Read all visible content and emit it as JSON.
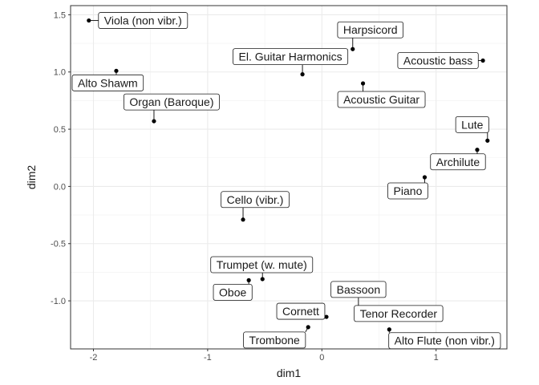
{
  "chart_data": {
    "type": "scatter",
    "xlabel": "dim1",
    "ylabel": "dim2",
    "xlim": [
      -2.2,
      1.62
    ],
    "ylim": [
      -1.42,
      1.58
    ],
    "x_ticks": [
      -2,
      -1,
      0,
      1
    ],
    "x_tick_labels": [
      "-2",
      "-1",
      "0",
      "1"
    ],
    "y_ticks": [
      -1.0,
      -0.5,
      0.0,
      0.5,
      1.0,
      1.5
    ],
    "y_tick_labels": [
      "-1.0",
      "-0.5",
      "0.0",
      "0.5",
      "1.0",
      "1.5"
    ],
    "grid": true,
    "points": [
      {
        "label": "Viola (non vibr.)",
        "x": -2.04,
        "y": 1.45
      },
      {
        "label": "Alto Shawm",
        "x": -1.8,
        "y": 1.01
      },
      {
        "label": "Organ (Baroque)",
        "x": -1.47,
        "y": 0.57
      },
      {
        "label": "Harpsicord",
        "x": 0.27,
        "y": 1.2
      },
      {
        "label": "El. Guitar Harmonics",
        "x": -0.17,
        "y": 0.98
      },
      {
        "label": "Acoustic bass",
        "x": 1.41,
        "y": 1.1
      },
      {
        "label": "Acoustic Guitar",
        "x": 0.36,
        "y": 0.9
      },
      {
        "label": "Lute",
        "x": 1.45,
        "y": 0.4
      },
      {
        "label": "Archilute",
        "x": 1.36,
        "y": 0.32
      },
      {
        "label": "Piano",
        "x": 0.9,
        "y": 0.08
      },
      {
        "label": "Cello (vibr.)",
        "x": -0.69,
        "y": -0.29
      },
      {
        "label": "Trumpet (w. mute)",
        "x": -0.52,
        "y": -0.81
      },
      {
        "label": "Oboe",
        "x": -0.64,
        "y": -0.82
      },
      {
        "label": "Bassoon",
        "x": 0.32,
        "y": -1.16
      },
      {
        "label": "Cornett",
        "x": 0.04,
        "y": -1.14
      },
      {
        "label": "Tenor Recorder",
        "x": 0.32,
        "y": -1.16
      },
      {
        "label": "Trombone",
        "x": -0.12,
        "y": -1.23
      },
      {
        "label": "Alto Flute (non vibr.)",
        "x": 0.59,
        "y": -1.25
      }
    ]
  }
}
